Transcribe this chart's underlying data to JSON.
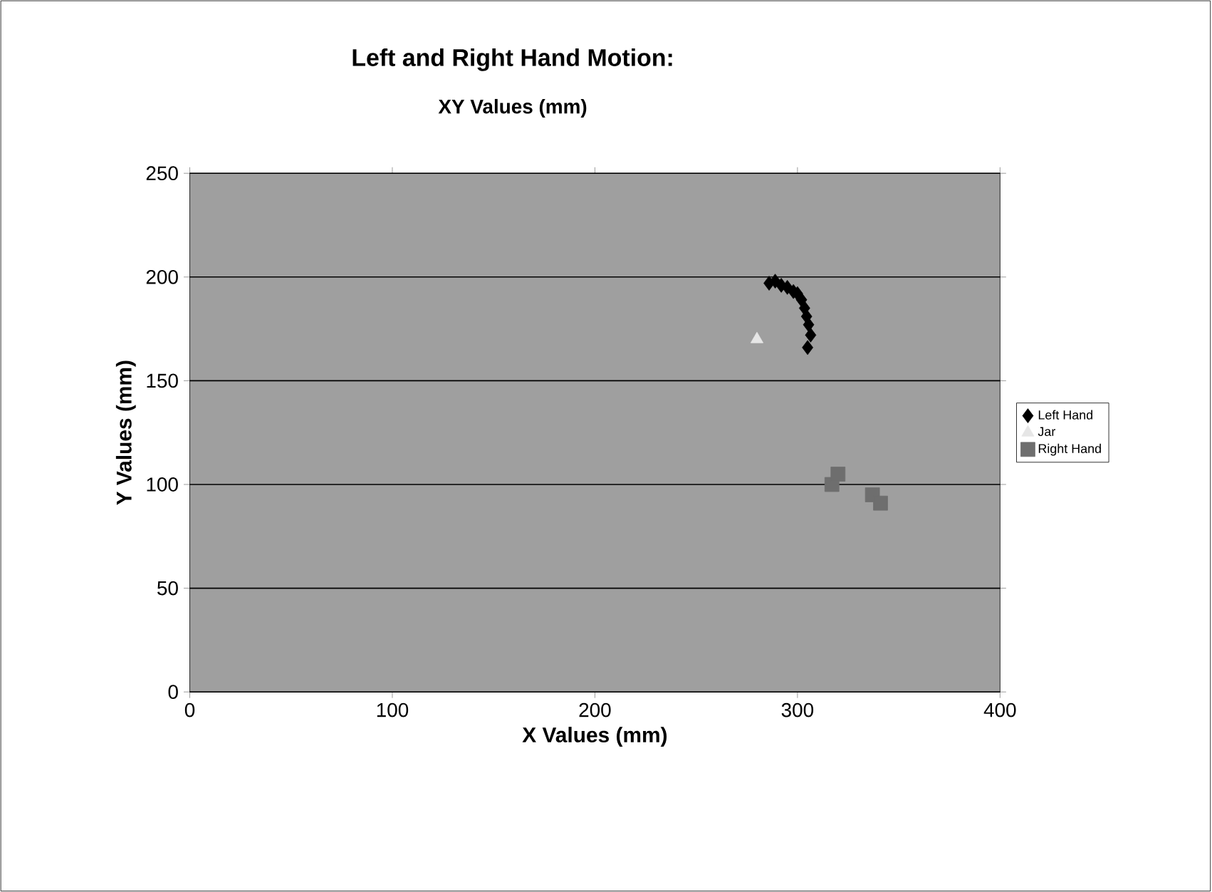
{
  "chart_data": {
    "type": "scatter",
    "title": "Left and Right Hand Motion:",
    "subtitle": "XY Values (mm)",
    "xlabel": "X Values (mm)",
    "ylabel": "Y Values (mm)",
    "xlim": [
      0,
      400
    ],
    "ylim": [
      0,
      250
    ],
    "xticks": [
      0,
      100,
      200,
      300,
      400
    ],
    "yticks": [
      0,
      50,
      100,
      150,
      200,
      250
    ],
    "grid": "y",
    "legend": "right",
    "series": [
      {
        "name": "Left Hand",
        "color": "#000000",
        "marker": "diamond",
        "x": [
          286,
          289,
          292,
          295,
          298,
          300,
          302,
          303.5,
          304.5,
          305.5,
          306.5,
          305
        ],
        "values": [
          197,
          198,
          196,
          195,
          193,
          192,
          189,
          185,
          181,
          177,
          172,
          166
        ]
      },
      {
        "name": "Jar",
        "color": "#e6e6e6",
        "marker": "triangle",
        "x": [
          280
        ],
        "values": [
          170
        ]
      },
      {
        "name": "Right Hand",
        "color": "#6e6e6e",
        "marker": "square",
        "x": [
          317,
          320,
          337,
          341
        ],
        "values": [
          100,
          105,
          95,
          91
        ]
      }
    ]
  }
}
